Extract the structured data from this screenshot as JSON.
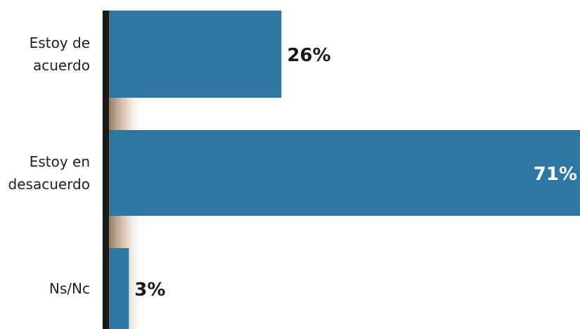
{
  "chart_data": {
    "type": "bar",
    "orientation": "horizontal",
    "categories": [
      [
        "Estoy de",
        "acuerdo"
      ],
      [
        "Estoy en",
        "desacuerdo"
      ],
      [
        "Ns/Nc"
      ]
    ],
    "values": [
      26,
      71,
      3
    ],
    "value_labels": [
      "26%",
      "71%",
      "3%"
    ],
    "unit": "%",
    "xlim": [
      0,
      71
    ],
    "title": "",
    "xlabel": "",
    "ylabel": "",
    "grid": false,
    "legend": "none",
    "colors": {
      "bar": "#2e77a3",
      "axis": "#1a1a1a",
      "shadow": "#a8876a",
      "label_outside": "#1a1a1a",
      "label_inside": "#ffffff"
    }
  }
}
